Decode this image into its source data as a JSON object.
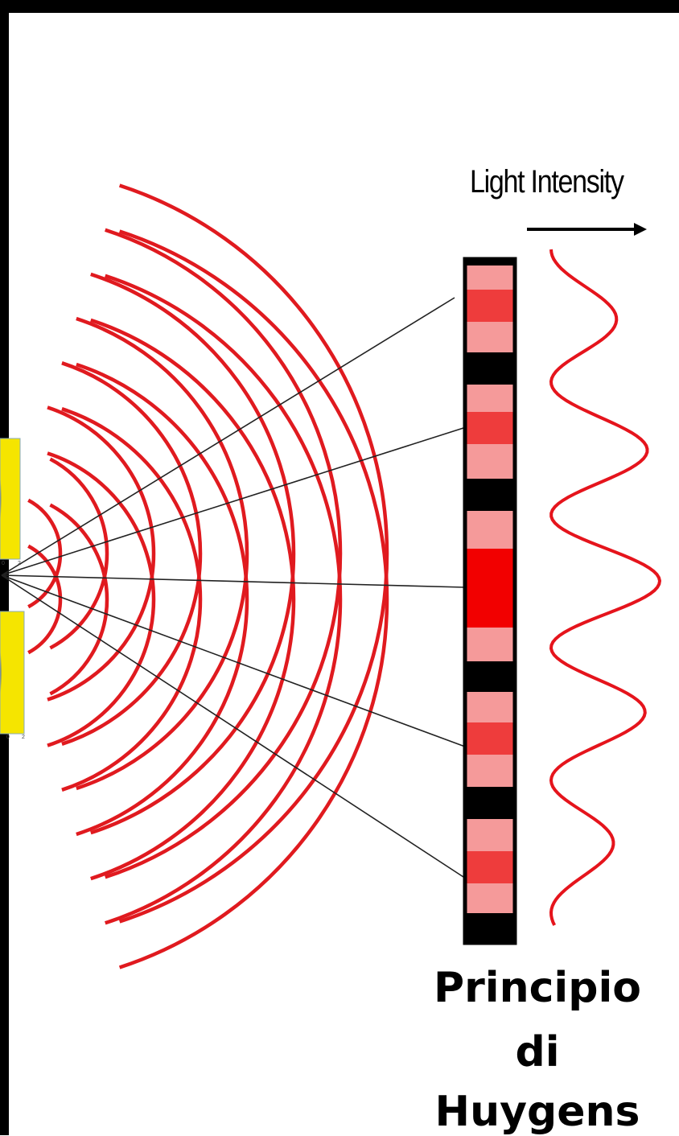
{
  "header_label": "Light Intensity",
  "caption": [
    "Principio",
    "di",
    "Huygens"
  ],
  "thumbnail_ticks": [
    "0",
    "2",
    "0",
    "2"
  ]
}
